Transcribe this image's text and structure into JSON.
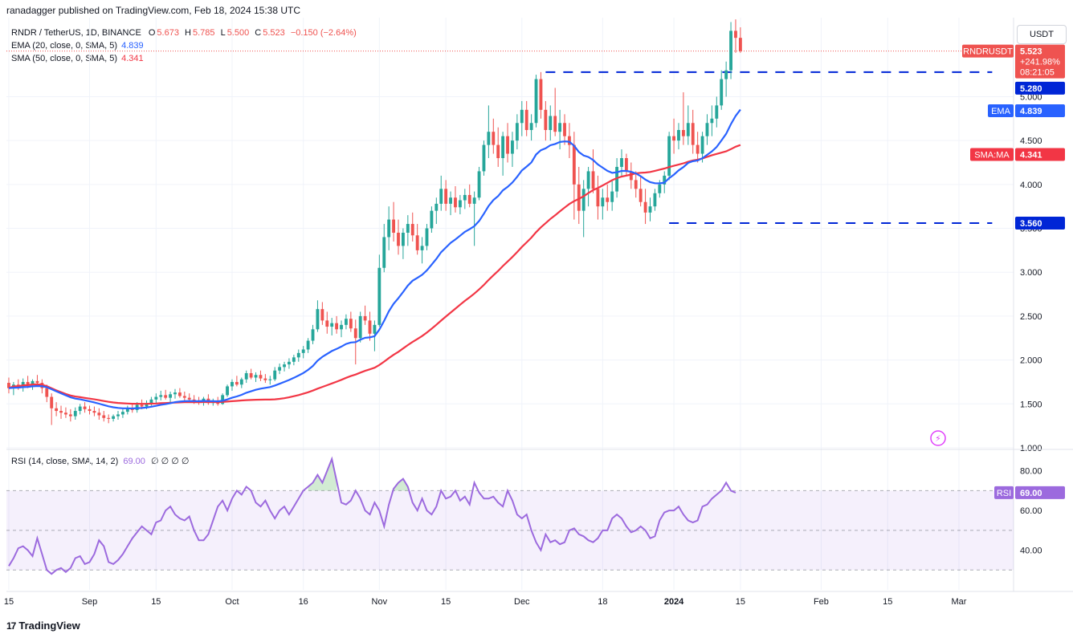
{
  "publisher": "ranadagger published on TradingView.com, Feb 18, 2024 15:38 UTC",
  "legend": {
    "symbol": "RNDR / TetherUS, 1D, BINANCE",
    "ohlc": {
      "O": "5.673",
      "H": "5.785",
      "L": "5.500",
      "C": "5.523",
      "change": "−0.150 (−2.64%)"
    },
    "ema": {
      "label": "EMA (20, close, 0, SMA, 5)",
      "value": "4.839"
    },
    "sma": {
      "label": "SMA (50, close, 0, SMA, 5)",
      "value": "4.341"
    }
  },
  "rsi_legend": {
    "label": "RSI (14, close, SMA, 14, 2)",
    "value": "69.00",
    "extras": "∅ ∅ ∅ ∅"
  },
  "currency": "USDT",
  "footer": {
    "brand": "TradingView",
    "logo": "17"
  },
  "tags": {
    "symbol_name": "RNDRUSDT",
    "price": "5.523",
    "pct": "+241.98%",
    "countdown": "08:21:05",
    "resistance": "5.280",
    "support": "3.560",
    "ema_name": "EMA",
    "ema_value": "4.839",
    "sma_name": "SMA:MA",
    "sma_value": "4.341",
    "rsi_name": "RSI",
    "rsi_value": "69.00"
  },
  "colors": {
    "up": "#26a69a",
    "down": "#ef5350",
    "ema": "#2962ff",
    "sma": "#f23645",
    "rsi": "#9c6ade",
    "level": "#0026d6",
    "text": "#131722"
  },
  "chart_data": {
    "type": "candlestick",
    "title": "RNDR / TetherUS, 1D, BINANCE",
    "ylim": [
      1.0,
      5.9
    ],
    "y_ticks": [
      "1.000",
      "1.500",
      "2.000",
      "2.500",
      "3.000",
      "3.500",
      "4.000",
      "4.500",
      "5.000"
    ],
    "x_ticks": [
      "15",
      "Sep",
      "15",
      "Oct",
      "16",
      "Nov",
      "15",
      "Dec",
      "18",
      "2024",
      "15",
      "Feb",
      "15",
      "Mar"
    ],
    "x_tick_days": [
      0,
      17,
      31,
      47,
      62,
      78,
      92,
      108,
      125,
      140,
      154,
      171,
      185,
      200
    ],
    "levels": [
      {
        "value": 5.28,
        "from_day": 113,
        "to_day": 207
      },
      {
        "value": 3.56,
        "from_day": 139,
        "to_day": 207
      }
    ],
    "candles": [
      {
        "o": 1.74,
        "h": 1.8,
        "l": 1.62,
        "c": 1.68
      },
      {
        "o": 1.68,
        "h": 1.75,
        "l": 1.6,
        "c": 1.72
      },
      {
        "o": 1.72,
        "h": 1.78,
        "l": 1.66,
        "c": 1.7
      },
      {
        "o": 1.7,
        "h": 1.79,
        "l": 1.64,
        "c": 1.75
      },
      {
        "o": 1.75,
        "h": 1.82,
        "l": 1.68,
        "c": 1.72
      },
      {
        "o": 1.72,
        "h": 1.78,
        "l": 1.66,
        "c": 1.76
      },
      {
        "o": 1.76,
        "h": 1.83,
        "l": 1.7,
        "c": 1.74
      },
      {
        "o": 1.74,
        "h": 1.78,
        "l": 1.62,
        "c": 1.68
      },
      {
        "o": 1.68,
        "h": 1.72,
        "l": 1.52,
        "c": 1.58
      },
      {
        "o": 1.58,
        "h": 1.62,
        "l": 1.26,
        "c": 1.45
      },
      {
        "o": 1.45,
        "h": 1.52,
        "l": 1.36,
        "c": 1.42
      },
      {
        "o": 1.42,
        "h": 1.48,
        "l": 1.33,
        "c": 1.4
      },
      {
        "o": 1.4,
        "h": 1.46,
        "l": 1.34,
        "c": 1.38
      },
      {
        "o": 1.38,
        "h": 1.44,
        "l": 1.3,
        "c": 1.36
      },
      {
        "o": 1.36,
        "h": 1.46,
        "l": 1.32,
        "c": 1.42
      },
      {
        "o": 1.42,
        "h": 1.5,
        "l": 1.38,
        "c": 1.47
      },
      {
        "o": 1.47,
        "h": 1.52,
        "l": 1.4,
        "c": 1.44
      },
      {
        "o": 1.44,
        "h": 1.48,
        "l": 1.38,
        "c": 1.42
      },
      {
        "o": 1.42,
        "h": 1.47,
        "l": 1.36,
        "c": 1.4
      },
      {
        "o": 1.4,
        "h": 1.45,
        "l": 1.32,
        "c": 1.37
      },
      {
        "o": 1.37,
        "h": 1.42,
        "l": 1.3,
        "c": 1.34
      },
      {
        "o": 1.34,
        "h": 1.38,
        "l": 1.28,
        "c": 1.33
      },
      {
        "o": 1.33,
        "h": 1.38,
        "l": 1.3,
        "c": 1.36
      },
      {
        "o": 1.36,
        "h": 1.42,
        "l": 1.32,
        "c": 1.38
      },
      {
        "o": 1.38,
        "h": 1.44,
        "l": 1.34,
        "c": 1.41
      },
      {
        "o": 1.41,
        "h": 1.48,
        "l": 1.38,
        "c": 1.45
      },
      {
        "o": 1.45,
        "h": 1.5,
        "l": 1.4,
        "c": 1.43
      },
      {
        "o": 1.43,
        "h": 1.52,
        "l": 1.4,
        "c": 1.49
      },
      {
        "o": 1.49,
        "h": 1.55,
        "l": 1.44,
        "c": 1.47
      },
      {
        "o": 1.47,
        "h": 1.54,
        "l": 1.44,
        "c": 1.51
      },
      {
        "o": 1.51,
        "h": 1.58,
        "l": 1.48,
        "c": 1.55
      },
      {
        "o": 1.55,
        "h": 1.62,
        "l": 1.5,
        "c": 1.58
      },
      {
        "o": 1.58,
        "h": 1.65,
        "l": 1.54,
        "c": 1.6
      },
      {
        "o": 1.6,
        "h": 1.66,
        "l": 1.55,
        "c": 1.57
      },
      {
        "o": 1.57,
        "h": 1.64,
        "l": 1.52,
        "c": 1.61
      },
      {
        "o": 1.61,
        "h": 1.67,
        "l": 1.56,
        "c": 1.63
      },
      {
        "o": 1.63,
        "h": 1.68,
        "l": 1.57,
        "c": 1.59
      },
      {
        "o": 1.59,
        "h": 1.64,
        "l": 1.54,
        "c": 1.57
      },
      {
        "o": 1.57,
        "h": 1.62,
        "l": 1.52,
        "c": 1.55
      },
      {
        "o": 1.55,
        "h": 1.6,
        "l": 1.5,
        "c": 1.53
      },
      {
        "o": 1.53,
        "h": 1.58,
        "l": 1.49,
        "c": 1.52
      },
      {
        "o": 1.52,
        "h": 1.58,
        "l": 1.48,
        "c": 1.56
      },
      {
        "o": 1.56,
        "h": 1.61,
        "l": 1.49,
        "c": 1.51
      },
      {
        "o": 1.51,
        "h": 1.56,
        "l": 1.48,
        "c": 1.54
      },
      {
        "o": 1.54,
        "h": 1.58,
        "l": 1.48,
        "c": 1.5
      },
      {
        "o": 1.5,
        "h": 1.62,
        "l": 1.49,
        "c": 1.6
      },
      {
        "o": 1.6,
        "h": 1.72,
        "l": 1.58,
        "c": 1.7
      },
      {
        "o": 1.7,
        "h": 1.78,
        "l": 1.65,
        "c": 1.75
      },
      {
        "o": 1.75,
        "h": 1.82,
        "l": 1.7,
        "c": 1.72
      },
      {
        "o": 1.72,
        "h": 1.8,
        "l": 1.68,
        "c": 1.78
      },
      {
        "o": 1.78,
        "h": 1.88,
        "l": 1.74,
        "c": 1.85
      },
      {
        "o": 1.85,
        "h": 1.9,
        "l": 1.78,
        "c": 1.8
      },
      {
        "o": 1.8,
        "h": 1.86,
        "l": 1.75,
        "c": 1.83
      },
      {
        "o": 1.83,
        "h": 1.88,
        "l": 1.76,
        "c": 1.79
      },
      {
        "o": 1.79,
        "h": 1.84,
        "l": 1.74,
        "c": 1.77
      },
      {
        "o": 1.77,
        "h": 1.82,
        "l": 1.72,
        "c": 1.78
      },
      {
        "o": 1.78,
        "h": 1.92,
        "l": 1.76,
        "c": 1.88
      },
      {
        "o": 1.88,
        "h": 1.96,
        "l": 1.84,
        "c": 1.92
      },
      {
        "o": 1.92,
        "h": 1.98,
        "l": 1.87,
        "c": 1.95
      },
      {
        "o": 1.95,
        "h": 2.02,
        "l": 1.9,
        "c": 1.98
      },
      {
        "o": 1.98,
        "h": 2.06,
        "l": 1.94,
        "c": 2.03
      },
      {
        "o": 2.03,
        "h": 2.12,
        "l": 1.98,
        "c": 2.08
      },
      {
        "o": 2.08,
        "h": 2.16,
        "l": 2.02,
        "c": 2.12
      },
      {
        "o": 2.12,
        "h": 2.25,
        "l": 2.08,
        "c": 2.22
      },
      {
        "o": 2.22,
        "h": 2.4,
        "l": 2.18,
        "c": 2.35
      },
      {
        "o": 2.35,
        "h": 2.68,
        "l": 2.32,
        "c": 2.58
      },
      {
        "o": 2.58,
        "h": 2.66,
        "l": 2.4,
        "c": 2.45
      },
      {
        "o": 2.45,
        "h": 2.55,
        "l": 2.3,
        "c": 2.38
      },
      {
        "o": 2.38,
        "h": 2.48,
        "l": 2.28,
        "c": 2.42
      },
      {
        "o": 2.42,
        "h": 2.5,
        "l": 2.3,
        "c": 2.35
      },
      {
        "o": 2.35,
        "h": 2.45,
        "l": 2.26,
        "c": 2.4
      },
      {
        "o": 2.4,
        "h": 2.52,
        "l": 2.35,
        "c": 2.47
      },
      {
        "o": 2.47,
        "h": 2.55,
        "l": 2.32,
        "c": 2.36
      },
      {
        "o": 2.36,
        "h": 2.46,
        "l": 1.95,
        "c": 2.25
      },
      {
        "o": 2.25,
        "h": 2.55,
        "l": 2.2,
        "c": 2.5
      },
      {
        "o": 2.5,
        "h": 2.62,
        "l": 2.4,
        "c": 2.45
      },
      {
        "o": 2.45,
        "h": 2.55,
        "l": 2.22,
        "c": 2.3
      },
      {
        "o": 2.3,
        "h": 2.45,
        "l": 2.1,
        "c": 2.4
      },
      {
        "o": 2.4,
        "h": 3.2,
        "l": 2.38,
        "c": 3.05
      },
      {
        "o": 3.05,
        "h": 3.55,
        "l": 3.0,
        "c": 3.4
      },
      {
        "o": 3.4,
        "h": 3.75,
        "l": 3.25,
        "c": 3.6
      },
      {
        "o": 3.6,
        "h": 3.8,
        "l": 3.35,
        "c": 3.45
      },
      {
        "o": 3.45,
        "h": 3.6,
        "l": 3.2,
        "c": 3.3
      },
      {
        "o": 3.3,
        "h": 3.5,
        "l": 3.15,
        "c": 3.45
      },
      {
        "o": 3.45,
        "h": 3.65,
        "l": 3.3,
        "c": 3.55
      },
      {
        "o": 3.55,
        "h": 3.68,
        "l": 3.35,
        "c": 3.42
      },
      {
        "o": 3.42,
        "h": 3.55,
        "l": 3.2,
        "c": 3.25
      },
      {
        "o": 3.25,
        "h": 3.4,
        "l": 3.1,
        "c": 3.3
      },
      {
        "o": 3.3,
        "h": 3.55,
        "l": 3.25,
        "c": 3.5
      },
      {
        "o": 3.5,
        "h": 3.75,
        "l": 3.45,
        "c": 3.7
      },
      {
        "o": 3.7,
        "h": 3.85,
        "l": 3.55,
        "c": 3.78
      },
      {
        "o": 3.78,
        "h": 4.1,
        "l": 3.7,
        "c": 3.95
      },
      {
        "o": 3.95,
        "h": 4.05,
        "l": 3.7,
        "c": 3.78
      },
      {
        "o": 3.78,
        "h": 3.92,
        "l": 3.65,
        "c": 3.85
      },
      {
        "o": 3.85,
        "h": 3.98,
        "l": 3.68,
        "c": 3.74
      },
      {
        "o": 3.74,
        "h": 3.88,
        "l": 3.66,
        "c": 3.82
      },
      {
        "o": 3.82,
        "h": 3.95,
        "l": 3.72,
        "c": 3.88
      },
      {
        "o": 3.88,
        "h": 4.0,
        "l": 3.74,
        "c": 3.78
      },
      {
        "o": 3.78,
        "h": 3.92,
        "l": 3.3,
        "c": 3.85
      },
      {
        "o": 3.85,
        "h": 4.2,
        "l": 3.82,
        "c": 4.15
      },
      {
        "o": 4.15,
        "h": 4.5,
        "l": 4.1,
        "c": 4.45
      },
      {
        "o": 4.45,
        "h": 4.9,
        "l": 4.3,
        "c": 4.6
      },
      {
        "o": 4.6,
        "h": 4.75,
        "l": 4.35,
        "c": 4.45
      },
      {
        "o": 4.45,
        "h": 4.65,
        "l": 4.2,
        "c": 4.3
      },
      {
        "o": 4.3,
        "h": 4.6,
        "l": 4.1,
        "c": 4.55
      },
      {
        "o": 4.55,
        "h": 4.7,
        "l": 4.25,
        "c": 4.35
      },
      {
        "o": 4.35,
        "h": 4.6,
        "l": 4.2,
        "c": 4.5
      },
      {
        "o": 4.5,
        "h": 4.8,
        "l": 4.4,
        "c": 4.7
      },
      {
        "o": 4.7,
        "h": 4.95,
        "l": 4.55,
        "c": 4.85
      },
      {
        "o": 4.85,
        "h": 4.95,
        "l": 4.55,
        "c": 4.62
      },
      {
        "o": 4.62,
        "h": 4.8,
        "l": 4.5,
        "c": 4.7
      },
      {
        "o": 4.7,
        "h": 5.25,
        "l": 4.65,
        "c": 5.2
      },
      {
        "o": 5.2,
        "h": 5.28,
        "l": 4.75,
        "c": 4.85
      },
      {
        "o": 4.85,
        "h": 4.95,
        "l": 4.5,
        "c": 4.62
      },
      {
        "o": 4.62,
        "h": 4.9,
        "l": 4.5,
        "c": 4.78
      },
      {
        "o": 4.78,
        "h": 5.1,
        "l": 4.55,
        "c": 4.6
      },
      {
        "o": 4.6,
        "h": 4.85,
        "l": 4.4,
        "c": 4.7
      },
      {
        "o": 4.7,
        "h": 4.8,
        "l": 4.45,
        "c": 4.55
      },
      {
        "o": 4.55,
        "h": 4.7,
        "l": 4.3,
        "c": 4.45
      },
      {
        "o": 4.45,
        "h": 4.6,
        "l": 3.6,
        "c": 4.0
      },
      {
        "o": 4.0,
        "h": 4.2,
        "l": 3.55,
        "c": 3.7
      },
      {
        "o": 3.7,
        "h": 4.05,
        "l": 3.4,
        "c": 3.95
      },
      {
        "o": 3.95,
        "h": 4.2,
        "l": 3.75,
        "c": 4.15
      },
      {
        "o": 4.15,
        "h": 4.4,
        "l": 3.9,
        "c": 3.95
      },
      {
        "o": 3.95,
        "h": 4.1,
        "l": 3.6,
        "c": 3.75
      },
      {
        "o": 3.75,
        "h": 3.95,
        "l": 3.6,
        "c": 3.85
      },
      {
        "o": 3.85,
        "h": 4.0,
        "l": 3.7,
        "c": 3.8
      },
      {
        "o": 3.8,
        "h": 4.05,
        "l": 3.7,
        "c": 3.92
      },
      {
        "o": 3.92,
        "h": 4.3,
        "l": 3.85,
        "c": 4.2
      },
      {
        "o": 4.2,
        "h": 4.4,
        "l": 4.1,
        "c": 4.3
      },
      {
        "o": 4.3,
        "h": 4.35,
        "l": 4.1,
        "c": 4.15
      },
      {
        "o": 4.15,
        "h": 4.25,
        "l": 3.95,
        "c": 4.05
      },
      {
        "o": 4.05,
        "h": 4.15,
        "l": 3.85,
        "c": 3.95
      },
      {
        "o": 3.95,
        "h": 4.1,
        "l": 3.75,
        "c": 3.8
      },
      {
        "o": 3.8,
        "h": 3.95,
        "l": 3.55,
        "c": 3.68
      },
      {
        "o": 3.68,
        "h": 3.85,
        "l": 3.58,
        "c": 3.75
      },
      {
        "o": 3.75,
        "h": 3.95,
        "l": 3.7,
        "c": 3.9
      },
      {
        "o": 3.9,
        "h": 4.05,
        "l": 3.85,
        "c": 4.0
      },
      {
        "o": 4.0,
        "h": 4.15,
        "l": 3.9,
        "c": 4.1
      },
      {
        "o": 4.1,
        "h": 4.6,
        "l": 4.05,
        "c": 4.55
      },
      {
        "o": 4.55,
        "h": 4.75,
        "l": 4.35,
        "c": 4.5
      },
      {
        "o": 4.5,
        "h": 4.7,
        "l": 4.4,
        "c": 4.62
      },
      {
        "o": 4.62,
        "h": 5.05,
        "l": 4.45,
        "c": 4.55
      },
      {
        "o": 4.55,
        "h": 4.9,
        "l": 4.45,
        "c": 4.7
      },
      {
        "o": 4.7,
        "h": 4.85,
        "l": 4.35,
        "c": 4.45
      },
      {
        "o": 4.45,
        "h": 4.6,
        "l": 4.25,
        "c": 4.35
      },
      {
        "o": 4.35,
        "h": 4.6,
        "l": 4.25,
        "c": 4.55
      },
      {
        "o": 4.55,
        "h": 4.8,
        "l": 4.45,
        "c": 4.7
      },
      {
        "o": 4.7,
        "h": 4.9,
        "l": 4.55,
        "c": 4.75
      },
      {
        "o": 4.75,
        "h": 5.0,
        "l": 4.65,
        "c": 4.9
      },
      {
        "o": 4.9,
        "h": 5.3,
        "l": 4.85,
        "c": 5.2
      },
      {
        "o": 5.2,
        "h": 5.4,
        "l": 5.0,
        "c": 5.3
      },
      {
        "o": 5.3,
        "h": 5.85,
        "l": 5.2,
        "c": 5.75
      },
      {
        "o": 5.75,
        "h": 5.88,
        "l": 5.5,
        "c": 5.67
      },
      {
        "o": 5.67,
        "h": 5.79,
        "l": 5.5,
        "c": 5.52
      }
    ],
    "ema": {
      "name": "EMA (20)",
      "last": 4.839
    },
    "sma": {
      "name": "SMA (50)",
      "last": 4.341
    },
    "rsi": {
      "name": "RSI (14)",
      "ylim": [
        20,
        90
      ],
      "y_ticks": [
        "40.00",
        "60.00",
        "80.00"
      ],
      "bands": [
        30,
        50,
        70
      ],
      "values": [
        32,
        36,
        41,
        42,
        40,
        37,
        46,
        38,
        30,
        28,
        30,
        31,
        29,
        31,
        36,
        37,
        33,
        34,
        38,
        45,
        42,
        34,
        33,
        35,
        38,
        42,
        46,
        49,
        52,
        50,
        48,
        54,
        55,
        60,
        62,
        58,
        56,
        55,
        57,
        50,
        45,
        45,
        48,
        55,
        62,
        65,
        60,
        66,
        70,
        68,
        72,
        70,
        64,
        62,
        65,
        60,
        56,
        60,
        62,
        58,
        62,
        66,
        70,
        72,
        74,
        78,
        74,
        80,
        86,
        75,
        64,
        63,
        65,
        70,
        66,
        60,
        58,
        64,
        60,
        52,
        63,
        71,
        74,
        76,
        72,
        64,
        60,
        66,
        60,
        58,
        62,
        70,
        66,
        67,
        70,
        65,
        67,
        63,
        74,
        69,
        66,
        66,
        67,
        64,
        62,
        70,
        65,
        58,
        56,
        58,
        50,
        44,
        40,
        48,
        44,
        45,
        43,
        44,
        50,
        51,
        48,
        47,
        45,
        44,
        46,
        50,
        50,
        56,
        58,
        56,
        52,
        49,
        50,
        52,
        50,
        46,
        47,
        55,
        59,
        60,
        60,
        62,
        58,
        55,
        54,
        55,
        62,
        63,
        66,
        68,
        70,
        74,
        70,
        69
      ]
    }
  }
}
